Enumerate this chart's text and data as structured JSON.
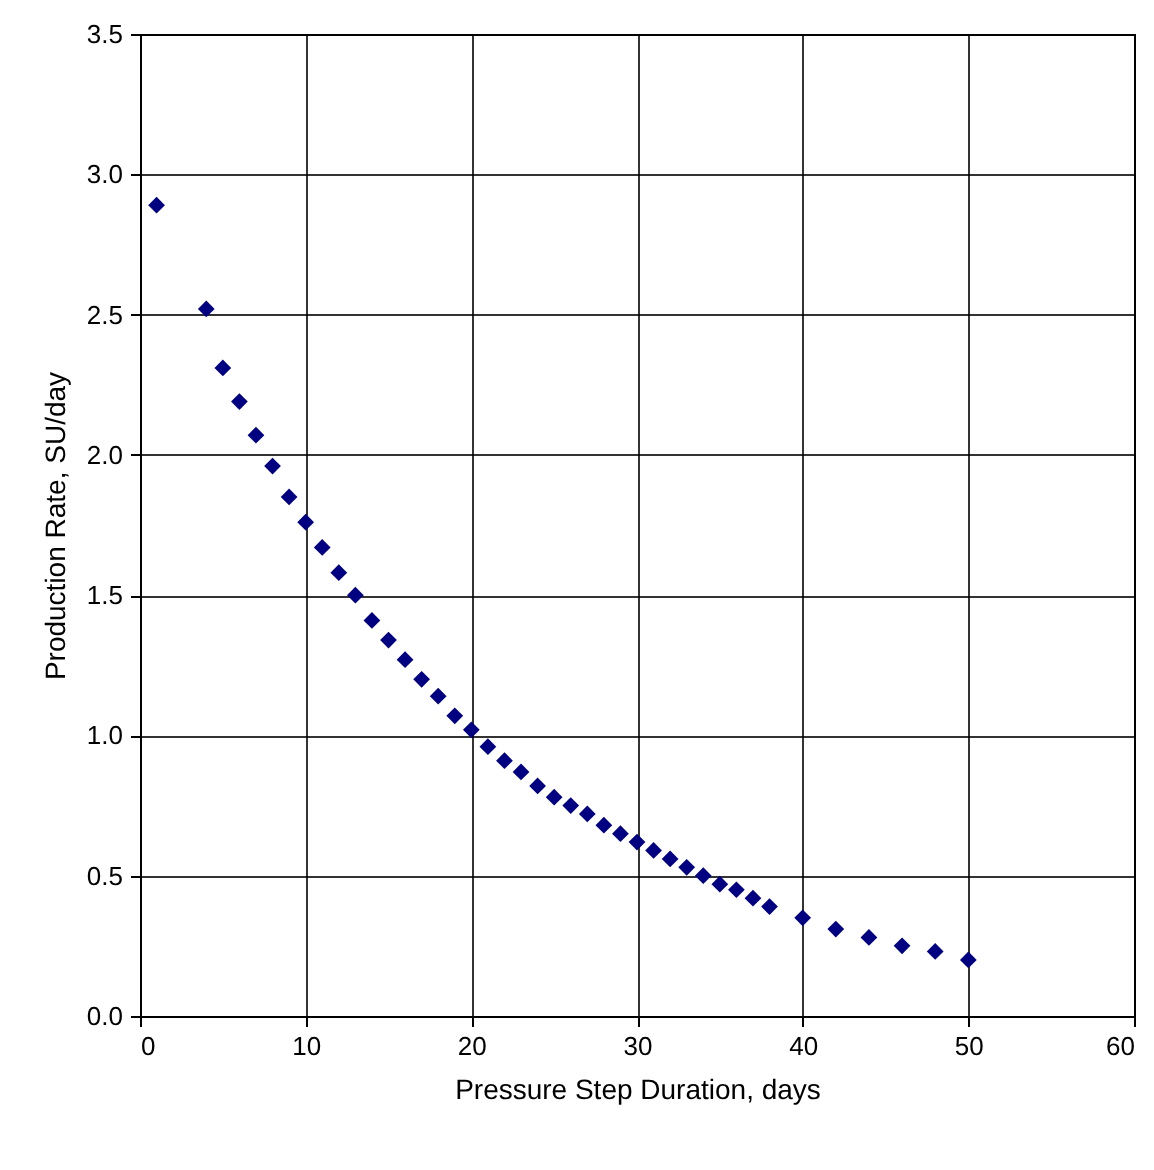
{
  "chart_data": {
    "type": "scatter",
    "xlabel": "Pressure Step Duration, days",
    "ylabel": "Production Rate, SU/day",
    "x": [
      1,
      4,
      5,
      6,
      7,
      8,
      9,
      10,
      11,
      12,
      13,
      14,
      15,
      16,
      17,
      18,
      19,
      20,
      21,
      22,
      23,
      24,
      25,
      26,
      27,
      28,
      29,
      30,
      31,
      32,
      33,
      34,
      35,
      36,
      37,
      38,
      40,
      42,
      44,
      46,
      48,
      50
    ],
    "series": [
      {
        "color": "#000080",
        "values": [
          2.89,
          2.52,
          2.31,
          2.19,
          2.07,
          1.96,
          1.85,
          1.76,
          1.67,
          1.58,
          1.5,
          1.41,
          1.34,
          1.27,
          1.2,
          1.14,
          1.07,
          1.02,
          0.96,
          0.91,
          0.87,
          0.82,
          0.78,
          0.75,
          0.72,
          0.68,
          0.65,
          0.62,
          0.59,
          0.56,
          0.53,
          0.5,
          0.47,
          0.45,
          0.42,
          0.39,
          0.35,
          0.31,
          0.28,
          0.25,
          0.23,
          0.2
        ]
      }
    ],
    "xlim": [
      0,
      60
    ],
    "xticks": [
      0,
      10,
      20,
      30,
      40,
      50,
      60
    ],
    "ylim": [
      0,
      3.5
    ],
    "yticks": [
      {
        "value": 0,
        "label": "0.0"
      },
      {
        "value": 0.5,
        "label": "0.5"
      },
      {
        "value": 1,
        "label": "1.0"
      },
      {
        "value": 1.5,
        "label": "1.5"
      },
      {
        "value": 2,
        "label": "2.0"
      },
      {
        "value": 2.5,
        "label": "2.5"
      },
      {
        "value": 3,
        "label": "3.0"
      },
      {
        "value": 3.5,
        "label": "3.5"
      }
    ],
    "grid": true,
    "marker": "diamond"
  }
}
